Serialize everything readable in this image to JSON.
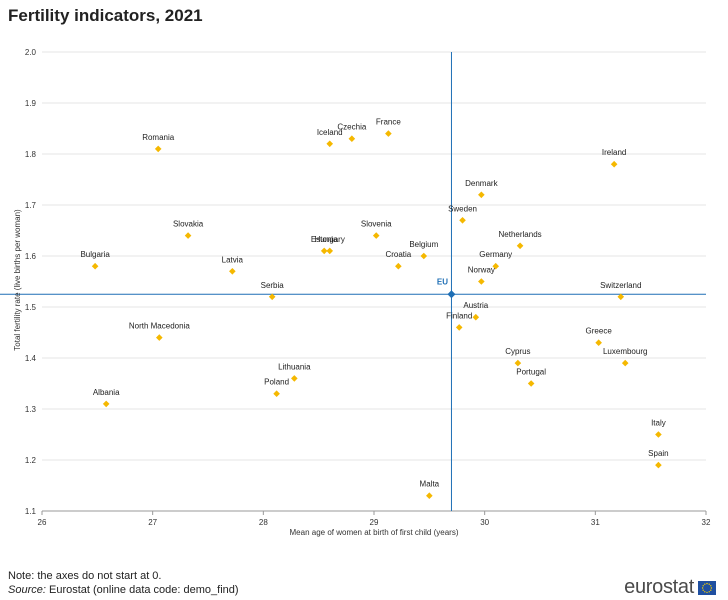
{
  "page": {
    "title": "Fertility indicators, 2021",
    "note": "Note: the axes do not start at 0.",
    "source_label": "Source:",
    "source_text": "Eurostat (online data code: demo_find)",
    "logo_text": "eurostat"
  },
  "chart_data": {
    "type": "scatter",
    "xlabel": "Mean age of women at birth of first child (years)",
    "ylabel": "Total fertility rate (live births per woman)",
    "xlim": [
      26,
      32
    ],
    "ylim": [
      1.1,
      2.0
    ],
    "x_ticks": [
      26,
      27,
      28,
      29,
      30,
      31,
      32
    ],
    "y_ticks": [
      1.1,
      1.2,
      1.3,
      1.4,
      1.5,
      1.6,
      1.7,
      1.8,
      1.9,
      2.0
    ],
    "grid": "horizontal",
    "point_color": "#F5B800",
    "reference_color": "#1F6FB5",
    "reference": {
      "label": "EU",
      "x": 29.7,
      "y": 1.525
    },
    "points": [
      {
        "label": "Romania",
        "x": 27.05,
        "y": 1.81
      },
      {
        "label": "Iceland",
        "x": 28.6,
        "y": 1.82
      },
      {
        "label": "Czechia",
        "x": 28.8,
        "y": 1.83
      },
      {
        "label": "France",
        "x": 29.13,
        "y": 1.84
      },
      {
        "label": "Ireland",
        "x": 31.17,
        "y": 1.78
      },
      {
        "label": "Denmark",
        "x": 29.97,
        "y": 1.72
      },
      {
        "label": "Sweden",
        "x": 29.8,
        "y": 1.67
      },
      {
        "label": "Slovakia",
        "x": 27.32,
        "y": 1.64
      },
      {
        "label": "Slovenia",
        "x": 29.02,
        "y": 1.64
      },
      {
        "label": "Netherlands",
        "x": 30.32,
        "y": 1.62
      },
      {
        "label": "Estonia",
        "x": 28.55,
        "y": 1.61
      },
      {
        "label": "Hungary",
        "x": 28.6,
        "y": 1.61
      },
      {
        "label": "Belgium",
        "x": 29.45,
        "y": 1.6
      },
      {
        "label": "Croatia",
        "x": 29.22,
        "y": 1.58
      },
      {
        "label": "Germany",
        "x": 30.1,
        "y": 1.58
      },
      {
        "label": "Bulgaria",
        "x": 26.48,
        "y": 1.58
      },
      {
        "label": "Latvia",
        "x": 27.72,
        "y": 1.57
      },
      {
        "label": "Norway",
        "x": 29.97,
        "y": 1.55
      },
      {
        "label": "Serbia",
        "x": 28.08,
        "y": 1.52
      },
      {
        "label": "Switzerland",
        "x": 31.23,
        "y": 1.52
      },
      {
        "label": "Austria",
        "x": 29.92,
        "y": 1.48
      },
      {
        "label": "Finland",
        "x": 29.77,
        "y": 1.46
      },
      {
        "label": "North Macedonia",
        "x": 27.06,
        "y": 1.44
      },
      {
        "label": "Greece",
        "x": 31.03,
        "y": 1.43
      },
      {
        "label": "Cyprus",
        "x": 30.3,
        "y": 1.39
      },
      {
        "label": "Luxembourg",
        "x": 31.27,
        "y": 1.39
      },
      {
        "label": "Lithuania",
        "x": 28.28,
        "y": 1.36
      },
      {
        "label": "Portugal",
        "x": 30.42,
        "y": 1.35
      },
      {
        "label": "Poland",
        "x": 28.12,
        "y": 1.33
      },
      {
        "label": "Albania",
        "x": 26.58,
        "y": 1.31
      },
      {
        "label": "Italy",
        "x": 31.57,
        "y": 1.25
      },
      {
        "label": "Spain",
        "x": 31.57,
        "y": 1.19
      },
      {
        "label": "Malta",
        "x": 29.5,
        "y": 1.13
      }
    ]
  }
}
